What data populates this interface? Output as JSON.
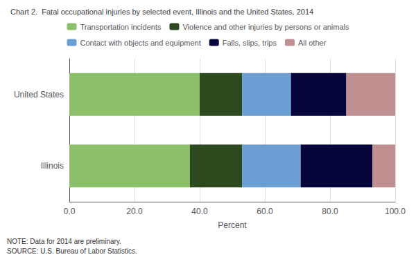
{
  "chart_data": {
    "type": "bar",
    "orientation": "horizontal",
    "stacked": true,
    "title": "Chart 2.  Fatal occupational injuries by selected event, Illinois and the United States, 2014",
    "categories": [
      "United States",
      "Illinois"
    ],
    "series": [
      {
        "name": "Transportation incidents",
        "color": "#8DC06A",
        "values": [
          40.0,
          37.0
        ]
      },
      {
        "name": "Violence and other injuries by persons or animals",
        "color": "#2D4A1E",
        "values": [
          13.0,
          16.0
        ]
      },
      {
        "name": "Contact with objects and equipment",
        "color": "#6B9FD4",
        "values": [
          15.0,
          18.0
        ]
      },
      {
        "name": "Falls, slips, trips",
        "color": "#05053C",
        "values": [
          17.0,
          22.0
        ]
      },
      {
        "name": "All other",
        "color": "#C09090",
        "values": [
          15.0,
          7.0
        ]
      }
    ],
    "xlabel": "Percent",
    "xlim": [
      0,
      100
    ],
    "xticks": [
      {
        "value": 0,
        "label": "0.0"
      },
      {
        "value": 20,
        "label": "20.0"
      },
      {
        "value": 40,
        "label": "40.0"
      },
      {
        "value": 60,
        "label": "60.0"
      },
      {
        "value": 80,
        "label": "80.0"
      },
      {
        "value": 100,
        "label": "100.0"
      }
    ],
    "grid": true,
    "legend": "top",
    "annotations": [
      "NOTE: Data for 2014 are preliminary.",
      "SOURCE: U.S. Bureau of Labor Statistics."
    ]
  }
}
